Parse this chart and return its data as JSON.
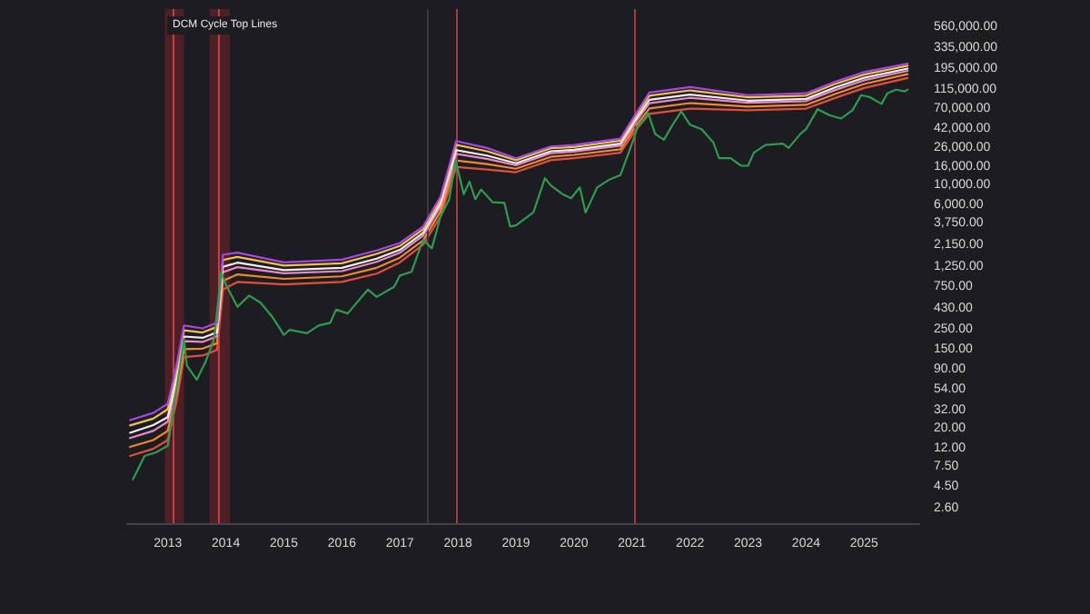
{
  "chart_data": {
    "type": "line",
    "title": "DCM Cycle Top Lines",
    "log": "y",
    "marker": "none",
    "line_style": "solid",
    "x": [
      2012.35,
      2012.75,
      2013.0,
      2013.15,
      2013.28,
      2013.6,
      2013.85,
      2013.95,
      2014.2,
      2015.0,
      2016.0,
      2016.6,
      2017.0,
      2017.4,
      2017.7,
      2017.97,
      2018.5,
      2019.0,
      2019.6,
      2020.0,
      2020.8,
      2021.05,
      2021.3,
      2022.0,
      2023.0,
      2024.0,
      2024.5,
      2025.0,
      2025.75
    ],
    "xlim": [
      2012.3,
      2025.95
    ],
    "xticks": [
      2013,
      2014,
      2015,
      2016,
      2017,
      2018,
      2019,
      2020,
      2021,
      2022,
      2023,
      2024,
      2025
    ],
    "ylim": [
      1.8,
      900000
    ],
    "yticks": [
      {
        "value": 560000,
        "label": "560,000.00"
      },
      {
        "value": 335000,
        "label": "335,000.00"
      },
      {
        "value": 195000,
        "label": "195,000.00"
      },
      {
        "value": 115000,
        "label": "115,000.00"
      },
      {
        "value": 70000,
        "label": "70,000.00"
      },
      {
        "value": 42000,
        "label": "42,000.00"
      },
      {
        "value": 26000,
        "label": "26,000.00"
      },
      {
        "value": 16000,
        "label": "16,000.00"
      },
      {
        "value": 10000,
        "label": "10,000.00"
      },
      {
        "value": 6000,
        "label": "6,000.00"
      },
      {
        "value": 3750,
        "label": "3,750.00"
      },
      {
        "value": 2150,
        "label": "2,150.00"
      },
      {
        "value": 1250,
        "label": "1,250.00"
      },
      {
        "value": 750,
        "label": "750.00"
      },
      {
        "value": 430,
        "label": "430.00"
      },
      {
        "value": 250,
        "label": "250.00"
      },
      {
        "value": 150,
        "label": "150.00"
      },
      {
        "value": 90,
        "label": "90.00"
      },
      {
        "value": 54,
        "label": "54.00"
      },
      {
        "value": 32,
        "label": "32.00"
      },
      {
        "value": 20,
        "label": "20.00"
      },
      {
        "value": 12,
        "label": "12.00"
      },
      {
        "value": 7.5,
        "label": "7.50"
      },
      {
        "value": 4.5,
        "label": "4.50"
      },
      {
        "value": 2.6,
        "label": "2.60"
      }
    ],
    "bands": [
      {
        "axis": "x",
        "from": 2012.95,
        "to": 2013.28,
        "color": "#5a2228"
      },
      {
        "axis": "x",
        "from": 2013.72,
        "to": 2014.07,
        "color": "#5a2228"
      }
    ],
    "ref_lines": [
      {
        "axis": "x",
        "value": 2013.1,
        "label": null,
        "color": "#c0404a"
      },
      {
        "axis": "x",
        "value": 2013.88,
        "label": null,
        "color": "#c0404a"
      },
      {
        "axis": "x",
        "value": 2017.47,
        "label": null,
        "color": "#3a3a42"
      },
      {
        "axis": "x",
        "value": 2017.97,
        "label": null,
        "color": "#a03a44"
      },
      {
        "axis": "x",
        "value": 2021.03,
        "label": null,
        "color": "#a03a44"
      }
    ],
    "series": [
      {
        "color": "#e05040",
        "values": [
          10,
          12,
          15,
          40,
          125,
          130,
          150,
          700,
          850,
          800,
          850,
          1050,
          1400,
          2200,
          4500,
          16000,
          15000,
          14000,
          19000,
          20000,
          23000,
          40000,
          62000,
          71000,
          68000,
          71000,
          93000,
          120000,
          155000
        ]
      },
      {
        "color": "#f08a30",
        "values": [
          12.6,
          15,
          19,
          50,
          153,
          155,
          178,
          875,
          1030,
          920,
          980,
          1220,
          1580,
          2460,
          5130,
          18900,
          17200,
          15300,
          20700,
          21800,
          25100,
          44300,
          71300,
          81700,
          74800,
          78100,
          103000,
          133000,
          171000
        ]
      },
      {
        "color": "#e88ac8",
        "values": [
          15.8,
          19,
          24,
          63,
          187,
          184,
          212,
          1090,
          1240,
          1060,
          1120,
          1420,
          1790,
          2770,
          5810,
          22300,
          19700,
          16700,
          22700,
          23700,
          27500,
          49000,
          81600,
          93400,
          82300,
          85900,
          114000,
          146000,
          186000
        ]
      },
      {
        "color": "#f2eef0",
        "values": [
          18.1,
          22,
          27,
          72,
          211,
          204,
          236,
          1250,
          1390,
          1150,
          1220,
          1540,
          1930,
          2970,
          6300,
          24600,
          21400,
          17600,
          23900,
          24800,
          29000,
          52000,
          88700,
          101600,
          87000,
          90900,
          122000,
          156000,
          197000
        ]
      },
      {
        "color": "#f2c24a",
        "values": [
          21.8,
          26,
          33,
          87,
          248,
          234,
          270,
          1490,
          1610,
          1290,
          1370,
          1740,
          2130,
          3260,
          6980,
          28200,
          23900,
          19000,
          25800,
          26600,
          31300,
          56400,
          98600,
          113000,
          94500,
          98700,
          133000,
          169000,
          212000
        ]
      },
      {
        "color": "#a448e8",
        "values": [
          25,
          30,
          38,
          100,
          280,
          260,
          300,
          1700,
          1800,
          1400,
          1500,
          1900,
          2300,
          3500,
          7500,
          31000,
          26000,
          20000,
          27000,
          28000,
          33000,
          60000,
          107000,
          123000,
          100000,
          105000,
          141000,
          180000,
          224000
        ]
      },
      {
        "color": "#2f9a52",
        "x": [
          2012.4,
          2012.6,
          2012.8,
          2013.0,
          2013.2,
          2013.28,
          2013.33,
          2013.5,
          2013.65,
          2013.8,
          2013.92,
          2014.0,
          2014.1,
          2014.2,
          2014.4,
          2014.6,
          2014.8,
          2015.0,
          2015.1,
          2015.4,
          2015.6,
          2015.8,
          2015.9,
          2016.1,
          2016.45,
          2016.6,
          2016.9,
          2017.0,
          2017.2,
          2017.4,
          2017.55,
          2017.7,
          2017.85,
          2017.96,
          2018.1,
          2018.2,
          2018.3,
          2018.4,
          2018.6,
          2018.8,
          2018.9,
          2019.0,
          2019.3,
          2019.5,
          2019.6,
          2019.8,
          2019.95,
          2020.1,
          2020.2,
          2020.4,
          2020.6,
          2020.8,
          2021.0,
          2021.1,
          2021.28,
          2021.4,
          2021.55,
          2021.7,
          2021.85,
          2022.0,
          2022.2,
          2022.4,
          2022.5,
          2022.7,
          2022.88,
          2023.0,
          2023.1,
          2023.3,
          2023.6,
          2023.7,
          2023.9,
          2024.0,
          2024.2,
          2024.4,
          2024.6,
          2024.8,
          2024.95,
          2025.1,
          2025.3,
          2025.4,
          2025.55,
          2025.7,
          2025.75
        ],
        "values": [
          5.5,
          10,
          11,
          13,
          90,
          200,
          100,
          70,
          110,
          200,
          1100,
          800,
          600,
          450,
          600,
          500,
          350,
          220,
          250,
          230,
          280,
          300,
          420,
          380,
          700,
          580,
          750,
          1000,
          1100,
          2500,
          2000,
          4500,
          7000,
          19000,
          8000,
          11000,
          7000,
          9000,
          6500,
          6400,
          3500,
          3600,
          5000,
          12000,
          10000,
          8000,
          7200,
          9500,
          5000,
          9500,
          11500,
          13000,
          29000,
          45000,
          63000,
          37000,
          32000,
          47000,
          66000,
          47000,
          42000,
          30000,
          20000,
          20000,
          16500,
          16500,
          23000,
          28000,
          29000,
          26000,
          37000,
          42000,
          70000,
          60000,
          55000,
          68000,
          100000,
          95000,
          80000,
          105000,
          115000,
          110000,
          115000
        ]
      }
    ]
  }
}
